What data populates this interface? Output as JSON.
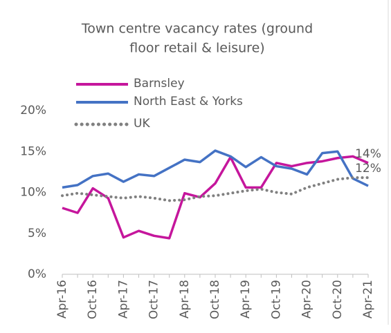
{
  "chart_data": {
    "type": "line",
    "title": [
      "Town centre vacancy rates (ground",
      "floor retail & leisure)"
    ],
    "categories": [
      "Apr-16",
      null,
      "Oct-16",
      null,
      "Apr-17",
      null,
      "Oct-17",
      null,
      "Apr-18",
      null,
      "Oct-18",
      null,
      "Apr-19",
      null,
      "Oct-19",
      null,
      "Apr-20",
      null,
      "Oct-20",
      null,
      "Apr-21"
    ],
    "series": [
      {
        "name": "Barnsley",
        "color": "#c5169c",
        "dash": false,
        "values": [
          8.1,
          7.5,
          10.5,
          9.3,
          4.5,
          5.3,
          4.7,
          4.4,
          9.9,
          9.4,
          11.1,
          14.3,
          10.6,
          10.6,
          13.6,
          13.2,
          13.6,
          13.8,
          14.2,
          14.4,
          13.6
        ],
        "value_labels": [
          null,
          null,
          null,
          null,
          null,
          null,
          null,
          null,
          null,
          null,
          null,
          null,
          null,
          null,
          null,
          null,
          null,
          null,
          null,
          null,
          "14%"
        ]
      },
      {
        "name": "North East & Yorks",
        "color": "#4472c4",
        "dash": false,
        "values": [
          10.6,
          10.9,
          12.0,
          12.3,
          11.3,
          12.2,
          12.0,
          13.0,
          14.0,
          13.7,
          15.1,
          14.4,
          13.1,
          14.3,
          13.2,
          12.9,
          12.2,
          14.8,
          15.0,
          11.7,
          10.8
        ]
      },
      {
        "name": "UK",
        "color": "#808080",
        "dash": true,
        "values": [
          9.6,
          9.9,
          9.7,
          9.5,
          9.3,
          9.5,
          9.3,
          9.0,
          9.1,
          9.5,
          9.6,
          9.9,
          10.2,
          10.4,
          10.0,
          9.8,
          10.6,
          11.1,
          11.6,
          11.8,
          11.8
        ],
        "value_labels": [
          null,
          null,
          null,
          null,
          null,
          null,
          null,
          null,
          null,
          null,
          null,
          null,
          null,
          null,
          null,
          null,
          null,
          null,
          null,
          null,
          "12%"
        ]
      }
    ],
    "ylim": [
      0,
      20
    ],
    "yticks": [
      {
        "value": 0,
        "label": "0%"
      },
      {
        "value": 5,
        "label": "5%"
      },
      {
        "value": 10,
        "label": "10%"
      },
      {
        "value": 15,
        "label": "15%"
      },
      {
        "value": 20,
        "label": "20%"
      }
    ],
    "grid": false,
    "legend": "top-left"
  }
}
